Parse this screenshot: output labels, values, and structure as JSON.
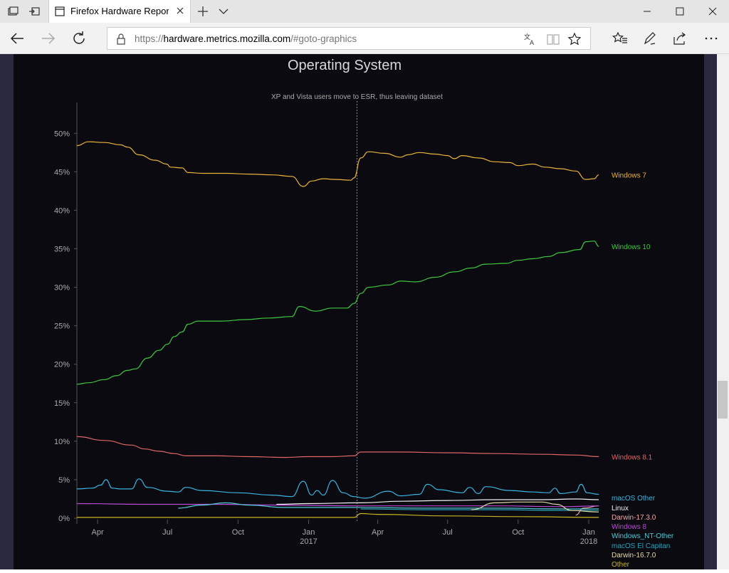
{
  "tab": {
    "title": "Firefox Hardware Repor"
  },
  "address": {
    "scheme": "https://",
    "host": "hardware.metrics.mozilla.com",
    "path": "/#goto-graphics"
  },
  "theme": {
    "panel_bg": "#0b0a10",
    "page_bg": "#26233a"
  },
  "chart_data": {
    "type": "line",
    "title": "Operating System",
    "annotation": "XP and Vista users move to ESR, thus leaving dataset",
    "annotation_x": "2017-03-05",
    "xlim": [
      "2016-03-05",
      "2018-01-14"
    ],
    "ylim": [
      0,
      54
    ],
    "y_ticks": [
      0,
      5,
      10,
      15,
      20,
      25,
      30,
      35,
      40,
      45,
      50
    ],
    "y_tick_labels": [
      "0%",
      "5%",
      "10%",
      "15%",
      "20%",
      "25%",
      "30%",
      "35%",
      "40%",
      "45%",
      "50%"
    ],
    "x_ticks": [
      "2016-04-01",
      "2016-07-01",
      "2016-10-01",
      "2017-01-01",
      "2017-04-01",
      "2017-07-01",
      "2017-10-01",
      "2018-01-01"
    ],
    "x_tick_labels": [
      "Apr",
      "Jul",
      "Oct",
      "Jan",
      "Apr",
      "Jul",
      "Oct",
      "Jan"
    ],
    "x_tick_sublabels": [
      "",
      "",
      "",
      "2017",
      "",
      "",
      "",
      "2018"
    ],
    "series": [
      {
        "name": "Windows 7",
        "color": "#e8b33a",
        "points": [
          [
            "2016-03-05",
            48.4
          ],
          [
            "2016-03-20",
            48.9
          ],
          [
            "2016-04-10",
            48.8
          ],
          [
            "2016-05-01",
            48.5
          ],
          [
            "2016-05-10",
            48.2
          ],
          [
            "2016-05-25",
            47.2
          ],
          [
            "2016-06-15",
            46.5
          ],
          [
            "2016-06-30",
            46.0
          ],
          [
            "2016-07-05",
            45.6
          ],
          [
            "2016-07-20",
            45.5
          ],
          [
            "2016-07-28",
            44.9
          ],
          [
            "2016-08-15",
            44.8
          ],
          [
            "2016-09-15",
            44.8
          ],
          [
            "2016-10-15",
            44.7
          ],
          [
            "2016-11-15",
            44.6
          ],
          [
            "2016-12-10",
            44.4
          ],
          [
            "2016-12-25",
            43.1
          ],
          [
            "2017-01-05",
            43.8
          ],
          [
            "2017-01-20",
            44.1
          ],
          [
            "2017-02-05",
            44.0
          ],
          [
            "2017-02-25",
            43.9
          ],
          [
            "2017-03-01",
            44.2
          ],
          [
            "2017-03-10",
            46.8
          ],
          [
            "2017-03-20",
            47.6
          ],
          [
            "2017-04-10",
            47.4
          ],
          [
            "2017-05-01",
            46.9
          ],
          [
            "2017-05-10",
            47.2
          ],
          [
            "2017-05-25",
            47.5
          ],
          [
            "2017-06-15",
            47.3
          ],
          [
            "2017-07-01",
            47.1
          ],
          [
            "2017-07-10",
            46.7
          ],
          [
            "2017-07-20",
            47.1
          ],
          [
            "2017-08-10",
            46.8
          ],
          [
            "2017-09-01",
            46.3
          ],
          [
            "2017-09-20",
            46.2
          ],
          [
            "2017-10-01",
            45.8
          ],
          [
            "2017-10-20",
            46.0
          ],
          [
            "2017-11-05",
            45.6
          ],
          [
            "2017-11-25",
            45.4
          ],
          [
            "2017-12-15",
            45.1
          ],
          [
            "2017-12-28",
            44.0
          ],
          [
            "2018-01-08",
            44.1
          ],
          [
            "2018-01-14",
            44.6
          ]
        ]
      },
      {
        "name": "Windows 10",
        "color": "#3ec83e",
        "points": [
          [
            "2016-03-05",
            17.4
          ],
          [
            "2016-03-20",
            17.6
          ],
          [
            "2016-04-10",
            18.0
          ],
          [
            "2016-04-25",
            18.5
          ],
          [
            "2016-05-10",
            19.2
          ],
          [
            "2016-05-20",
            19.4
          ],
          [
            "2016-06-05",
            20.8
          ],
          [
            "2016-06-20",
            21.8
          ],
          [
            "2016-07-01",
            22.6
          ],
          [
            "2016-07-10",
            23.6
          ],
          [
            "2016-07-20",
            24.2
          ],
          [
            "2016-07-28",
            25.2
          ],
          [
            "2016-08-10",
            25.6
          ],
          [
            "2016-09-10",
            25.6
          ],
          [
            "2016-10-10",
            25.8
          ],
          [
            "2016-11-10",
            26.0
          ],
          [
            "2016-12-10",
            26.2
          ],
          [
            "2016-12-20",
            27.5
          ],
          [
            "2017-01-10",
            26.9
          ],
          [
            "2017-02-01",
            27.3
          ],
          [
            "2017-02-20",
            27.3
          ],
          [
            "2017-03-01",
            27.9
          ],
          [
            "2017-03-10",
            29.2
          ],
          [
            "2017-03-20",
            30.0
          ],
          [
            "2017-04-15",
            30.3
          ],
          [
            "2017-05-01",
            30.8
          ],
          [
            "2017-05-20",
            30.7
          ],
          [
            "2017-06-15",
            31.3
          ],
          [
            "2017-07-10",
            32.0
          ],
          [
            "2017-08-01",
            32.5
          ],
          [
            "2017-08-20",
            33.0
          ],
          [
            "2017-09-15",
            33.1
          ],
          [
            "2017-10-01",
            33.5
          ],
          [
            "2017-10-20",
            33.7
          ],
          [
            "2017-11-10",
            34.0
          ],
          [
            "2017-11-25",
            34.5
          ],
          [
            "2017-12-20",
            34.9
          ],
          [
            "2017-12-28",
            35.9
          ],
          [
            "2018-01-08",
            36.0
          ],
          [
            "2018-01-14",
            35.3
          ]
        ]
      },
      {
        "name": "Windows 8.1",
        "color": "#e06666",
        "points": [
          [
            "2016-03-05",
            10.6
          ],
          [
            "2016-04-10",
            10.1
          ],
          [
            "2016-05-15",
            9.5
          ],
          [
            "2016-06-01",
            9.0
          ],
          [
            "2016-06-20",
            8.7
          ],
          [
            "2016-07-10",
            8.4
          ],
          [
            "2016-07-25",
            8.1
          ],
          [
            "2016-09-01",
            8.1
          ],
          [
            "2016-10-15",
            8.0
          ],
          [
            "2016-12-01",
            7.9
          ],
          [
            "2017-01-01",
            8.0
          ],
          [
            "2017-02-01",
            8.0
          ],
          [
            "2017-03-01",
            8.1
          ],
          [
            "2017-03-10",
            8.6
          ],
          [
            "2017-05-01",
            8.6
          ],
          [
            "2017-07-01",
            8.5
          ],
          [
            "2017-09-01",
            8.4
          ],
          [
            "2017-11-01",
            8.3
          ],
          [
            "2017-12-15",
            8.2
          ],
          [
            "2018-01-14",
            8.0
          ]
        ]
      },
      {
        "name": "macOS Other",
        "color": "#3ab4e0",
        "points": [
          [
            "2016-03-05",
            3.8
          ],
          [
            "2016-03-25",
            3.9
          ],
          [
            "2016-04-05",
            4.3
          ],
          [
            "2016-04-12",
            5.0
          ],
          [
            "2016-04-20",
            3.9
          ],
          [
            "2016-05-01",
            3.8
          ],
          [
            "2016-05-15",
            3.8
          ],
          [
            "2016-05-25",
            5.1
          ],
          [
            "2016-06-05",
            4.0
          ],
          [
            "2016-07-01",
            3.5
          ],
          [
            "2016-07-15",
            3.4
          ],
          [
            "2016-07-25",
            4.0
          ],
          [
            "2016-08-15",
            3.6
          ],
          [
            "2016-10-01",
            3.3
          ],
          [
            "2016-11-15",
            3.0
          ],
          [
            "2016-12-10",
            2.8
          ],
          [
            "2016-12-25",
            4.8
          ],
          [
            "2017-01-05",
            3.0
          ],
          [
            "2017-01-12",
            3.6
          ],
          [
            "2017-01-20",
            3.0
          ],
          [
            "2017-02-01",
            4.9
          ],
          [
            "2017-02-15",
            3.3
          ],
          [
            "2017-03-01",
            2.8
          ],
          [
            "2017-03-15",
            2.6
          ],
          [
            "2017-04-15",
            3.5
          ],
          [
            "2017-05-01",
            2.9
          ],
          [
            "2017-05-25",
            3.1
          ],
          [
            "2017-06-05",
            4.4
          ],
          [
            "2017-06-20",
            3.7
          ],
          [
            "2017-07-20",
            3.3
          ],
          [
            "2017-07-30",
            4.0
          ],
          [
            "2017-08-10",
            3.2
          ],
          [
            "2017-08-20",
            4.1
          ],
          [
            "2017-09-20",
            3.6
          ],
          [
            "2017-10-20",
            3.4
          ],
          [
            "2017-11-10",
            3.3
          ],
          [
            "2017-11-18",
            3.9
          ],
          [
            "2017-11-25",
            3.2
          ],
          [
            "2017-12-15",
            3.4
          ],
          [
            "2017-12-22",
            4.4
          ],
          [
            "2017-12-30",
            3.3
          ],
          [
            "2018-01-14",
            3.1
          ]
        ]
      },
      {
        "name": "Linux",
        "color": "#f2f2f2",
        "points": [
          [
            "2016-11-20",
            1.8
          ],
          [
            "2017-01-01",
            1.9
          ],
          [
            "2017-03-10",
            2.0
          ],
          [
            "2017-05-01",
            2.2
          ],
          [
            "2017-07-01",
            2.3
          ],
          [
            "2017-09-01",
            2.4
          ],
          [
            "2017-11-01",
            2.4
          ],
          [
            "2017-12-15",
            2.5
          ],
          [
            "2018-01-14",
            2.4
          ]
        ]
      },
      {
        "name": "Darwin-17.3.0",
        "color": "#f4a6a6",
        "points": [
          [
            "2017-12-15",
            0.4
          ],
          [
            "2017-12-25",
            1.3
          ],
          [
            "2018-01-14",
            1.6
          ]
        ]
      },
      {
        "name": "Windows 8",
        "color": "#b84bd4",
        "points": [
          [
            "2016-03-05",
            1.9
          ],
          [
            "2016-06-01",
            1.8
          ],
          [
            "2016-09-01",
            1.8
          ],
          [
            "2016-12-01",
            1.7
          ],
          [
            "2017-03-01",
            1.6
          ],
          [
            "2017-06-01",
            1.6
          ],
          [
            "2017-09-01",
            1.6
          ],
          [
            "2017-12-01",
            1.5
          ],
          [
            "2018-01-14",
            1.6
          ]
        ]
      },
      {
        "name": "Windows_NT-Other",
        "color": "#4fc9d6",
        "points": [
          [
            "2016-07-15",
            1.3
          ],
          [
            "2016-08-15",
            1.7
          ],
          [
            "2016-09-15",
            2.0
          ],
          [
            "2016-10-15",
            1.7
          ],
          [
            "2016-12-01",
            1.4
          ],
          [
            "2017-03-01",
            1.4
          ],
          [
            "2017-06-01",
            1.3
          ],
          [
            "2017-09-01",
            1.3
          ],
          [
            "2017-12-01",
            1.2
          ],
          [
            "2018-01-14",
            1.2
          ]
        ]
      },
      {
        "name": "macOS El Capitan",
        "color": "#2aa0b8",
        "points": [
          [
            "2017-03-10",
            1.2
          ],
          [
            "2017-06-01",
            1.1
          ],
          [
            "2017-09-01",
            1.1
          ],
          [
            "2017-12-01",
            1.0
          ],
          [
            "2018-01-14",
            1.0
          ]
        ]
      },
      {
        "name": "Darwin-16.7.0",
        "color": "#e3d9a6",
        "points": [
          [
            "2017-08-01",
            1.1
          ],
          [
            "2017-09-01",
            2.0
          ],
          [
            "2017-10-01",
            2.1
          ],
          [
            "2017-11-01",
            2.1
          ],
          [
            "2017-11-20",
            1.8
          ],
          [
            "2017-12-10",
            1.0
          ],
          [
            "2018-01-14",
            0.8
          ]
        ]
      },
      {
        "name": "Other",
        "color": "#c8b420",
        "points": [
          [
            "2016-03-05",
            0.1
          ],
          [
            "2016-09-01",
            0.1
          ],
          [
            "2017-03-01",
            0.1
          ],
          [
            "2017-03-10",
            0.6
          ],
          [
            "2017-04-01",
            0.5
          ],
          [
            "2017-07-01",
            0.3
          ],
          [
            "2017-10-01",
            0.2
          ],
          [
            "2018-01-14",
            0.1
          ]
        ]
      }
    ]
  }
}
